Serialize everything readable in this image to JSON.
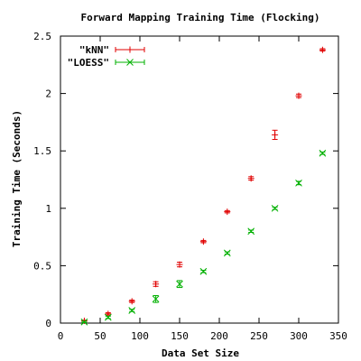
{
  "chart_data": {
    "type": "scatter",
    "title": "Forward Mapping Training Time (Flocking)",
    "xlabel": "Data Set Size",
    "ylabel": "Training Time (Seconds)",
    "xlim": [
      0,
      350
    ],
    "ylim": [
      0,
      2.5
    ],
    "x_ticks": [
      0,
      50,
      100,
      150,
      200,
      250,
      300,
      350
    ],
    "y_ticks": [
      0,
      0.5,
      1,
      1.5,
      2,
      2.5
    ],
    "x_tick_labels": [
      "0",
      "50",
      "100",
      "150",
      "200",
      "250",
      "300",
      "350"
    ],
    "y_tick_labels": [
      "0",
      "0.5",
      "1",
      "1.5",
      "2",
      "2.5"
    ],
    "grid": false,
    "legend_position": "top-left",
    "series": [
      {
        "name": "\"kNN\"",
        "marker": "plus",
        "color": "#e00000",
        "x": [
          30,
          60,
          90,
          120,
          150,
          180,
          210,
          240,
          270,
          300,
          330
        ],
        "y": [
          0.02,
          0.08,
          0.19,
          0.34,
          0.51,
          0.71,
          0.97,
          1.26,
          1.64,
          1.98,
          2.38
        ],
        "err": [
          0.005,
          0.01,
          0.01,
          0.02,
          0.02,
          0.01,
          0.01,
          0.015,
          0.04,
          0.015,
          0.01
        ]
      },
      {
        "name": "\"LOESS\"",
        "marker": "cross",
        "color": "#00b000",
        "x": [
          30,
          60,
          90,
          120,
          150,
          180,
          210,
          240,
          270,
          300,
          330
        ],
        "y": [
          0.01,
          0.05,
          0.11,
          0.21,
          0.34,
          0.45,
          0.61,
          0.8,
          1.0,
          1.22,
          1.48
        ],
        "err": [
          0.005,
          0.01,
          0.01,
          0.03,
          0.03,
          0.01,
          0.01,
          0.01,
          0.01,
          0.015,
          0.01
        ]
      }
    ]
  }
}
